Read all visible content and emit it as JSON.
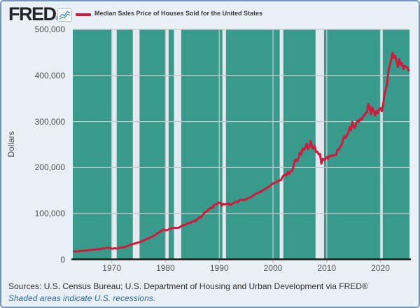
{
  "header": {
    "logo": "FRED",
    "logo_reg": "®",
    "legend_label": "Median Sales Price of Houses Sold for the United States"
  },
  "footer": {
    "sources": "Sources: U.S. Census Bureau; U.S. Department of Housing and Urban Development via FRED®",
    "recession_note": "Shaded areas indicate U.S. recessions."
  },
  "chart_data": {
    "type": "line",
    "title": "Median Sales Price of Houses Sold for the United States",
    "ylabel": "Dollars",
    "xlabel": "",
    "ylim": [
      0,
      500000
    ],
    "xlim": [
      1962.75,
      2025.4
    ],
    "y_ticks": [
      0,
      100000,
      200000,
      300000,
      400000,
      500000
    ],
    "x_ticks": [
      1970,
      1980,
      1990,
      2000,
      2010,
      2020
    ],
    "grid": true,
    "legend_position": "top",
    "frequency": "quarterly",
    "start_year": 1963,
    "values": [
      17800,
      18000,
      17900,
      18500,
      18500,
      18900,
      18900,
      19300,
      19600,
      19800,
      20000,
      21000,
      21200,
      21400,
      21300,
      21700,
      22200,
      22700,
      23000,
      22700,
      23400,
      24700,
      24600,
      24700,
      25600,
      25600,
      25900,
      25200,
      23900,
      23900,
      25000,
      24400,
      24300,
      25200,
      25900,
      26200,
      26700,
      26900,
      27600,
      29300,
      29900,
      31500,
      32500,
      33200,
      34000,
      35200,
      35800,
      37000,
      37300,
      38900,
      39500,
      40200,
      42200,
      43400,
      44800,
      46200,
      46300,
      48200,
      49500,
      51600,
      52500,
      55500,
      57000,
      59100,
      60600,
      62900,
      64700,
      65600,
      63700,
      64200,
      65000,
      67300,
      67800,
      68900,
      69300,
      69200,
      68900,
      69000,
      69600,
      71500,
      73500,
      74600,
      75300,
      76000,
      78200,
      79900,
      79100,
      81000,
      82800,
      84200,
      83200,
      86800,
      88000,
      92000,
      91000,
      94000,
      97500,
      102700,
      103600,
      105100,
      110000,
      110500,
      113500,
      112500,
      118000,
      120000,
      120000,
      123800,
      123900,
      122900,
      117400,
      121500,
      120000,
      121000,
      120000,
      122000,
      119500,
      120000,
      121500,
      123500,
      125000,
      126500,
      125000,
      129000,
      130000,
      130000,
      129500,
      131000,
      130000,
      133500,
      134000,
      134900,
      137000,
      139000,
      141000,
      142900,
      143800,
      145400,
      146500,
      148100,
      149800,
      151700,
      153000,
      154500,
      157200,
      158000,
      160800,
      163500,
      165300,
      166500,
      167800,
      169800,
      169800,
      173100,
      172600,
      179400,
      182900,
      185000,
      183300,
      190700,
      186000,
      191800,
      191900,
      198800,
      212700,
      217600,
      213500,
      221000,
      232500,
      228300,
      240900,
      238600,
      243800,
      251800,
      239800,
      244700,
      257400,
      245800,
      241100,
      246900,
      233900,
      234300,
      228600,
      229600,
      208400,
      219000,
      216700,
      219000,
      222900,
      219500,
      225500,
      224300,
      226900,
      226100,
      227200,
      227400,
      238400,
      238700,
      245200,
      248000,
      258400,
      268100,
      264800,
      270200,
      275200,
      288000,
      281000,
      298900,
      289200,
      286300,
      295800,
      302500,
      299800,
      306000,
      303800,
      310900,
      313100,
      318200,
      320500,
      337900,
      331800,
      315600,
      330600,
      322800,
      313000,
      322500,
      318400,
      327100,
      329000,
      322600,
      337500,
      358700,
      369800,
      382600,
      411200,
      423600,
      433100,
      449300,
      438000,
      442600,
      429000,
      418500,
      435400,
      423200,
      426800,
      414200,
      420400,
      419200,
      416900,
      410800
    ],
    "recessions": [
      [
        1969.92,
        1970.92
      ],
      [
        1973.92,
        1975.17
      ],
      [
        1980.08,
        1980.58
      ],
      [
        1981.58,
        1982.92
      ],
      [
        1990.58,
        1991.25
      ],
      [
        2001.25,
        2001.92
      ],
      [
        2007.92,
        2009.5
      ],
      [
        2020.08,
        2020.42
      ]
    ],
    "colors": {
      "line": "#d2193c",
      "plot_background": "#379a8b",
      "recession_band": "#e4e9ef",
      "gridline": "#c4c8cc",
      "axis": "#1a1a1a",
      "tick_label": "#555555",
      "note_blue": "#2e6da4"
    }
  }
}
